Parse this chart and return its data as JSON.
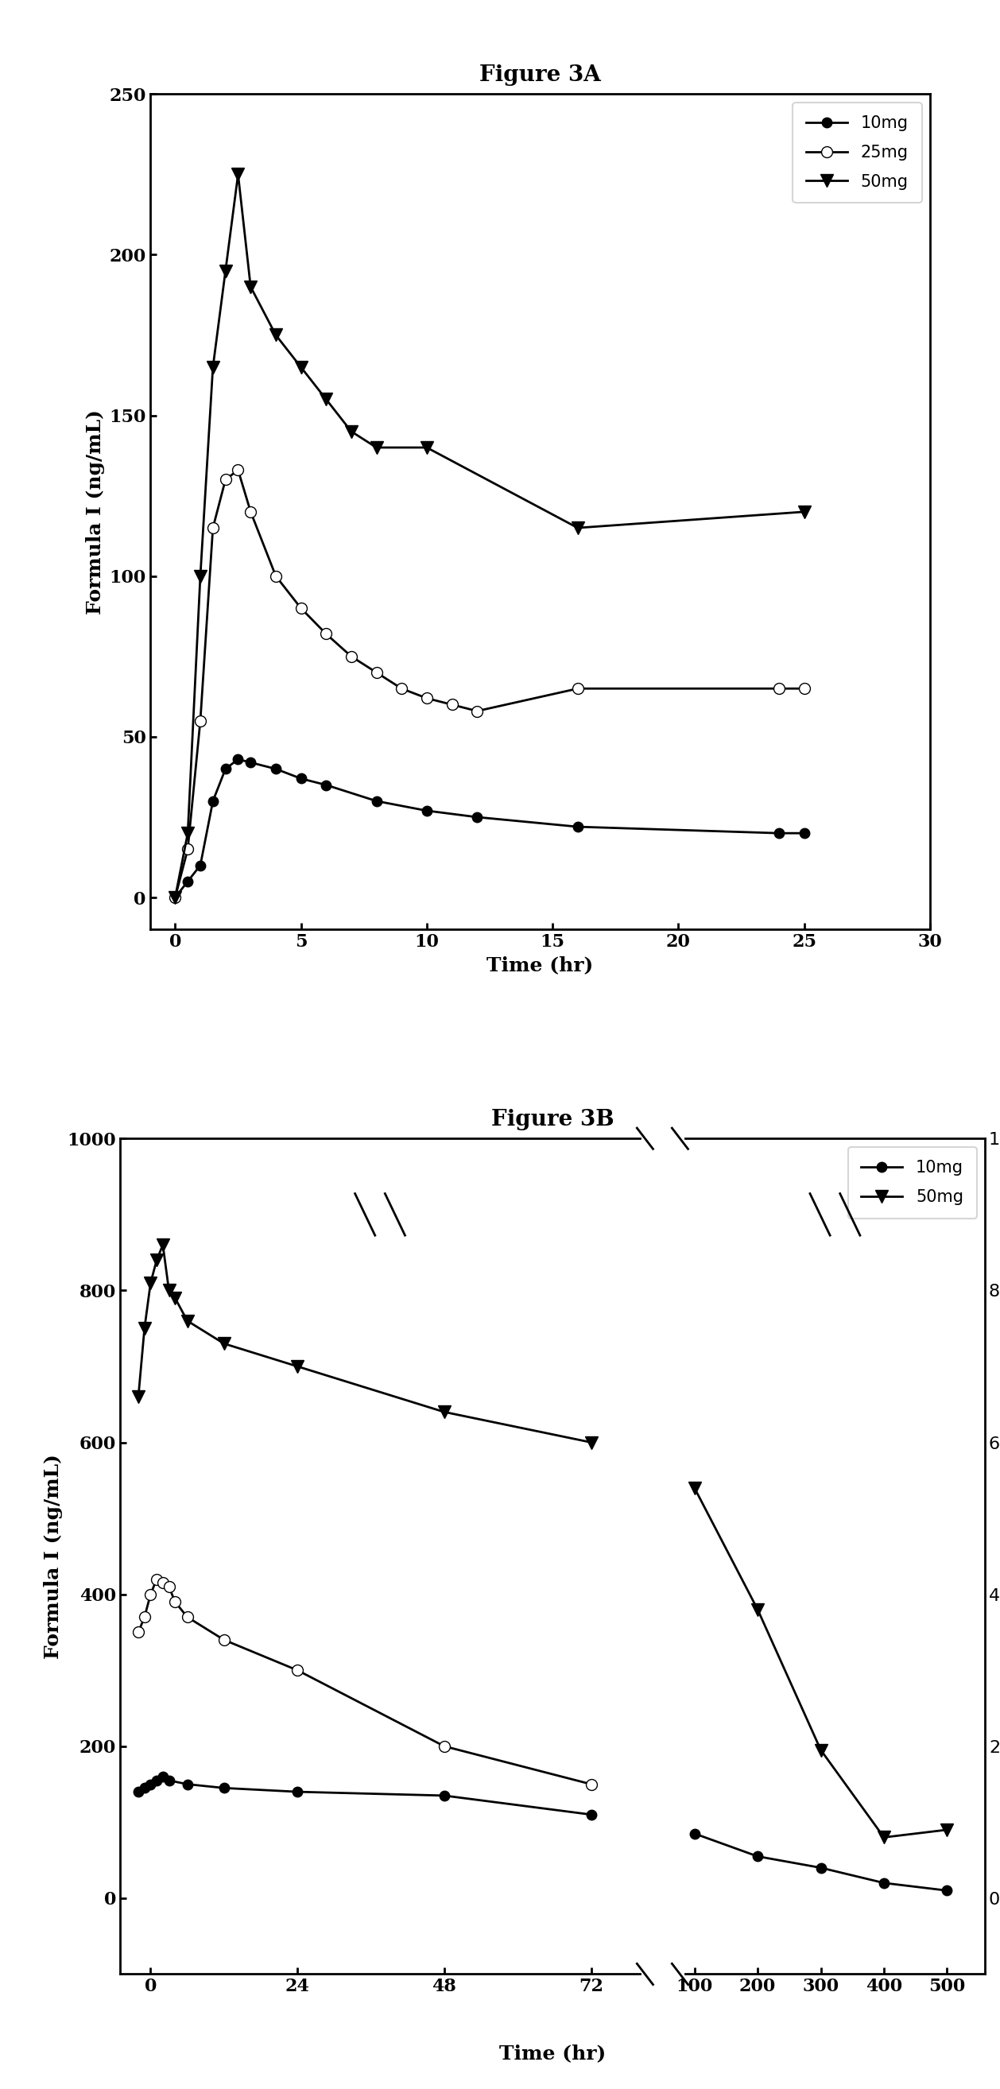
{
  "fig3a_title": "Figure 3A",
  "fig3b_title": "Figure 3B",
  "ylabel": "Formula I (ng/mL)",
  "xlabel": "Time (hr)",
  "fig3a_10mg_x": [
    0,
    0.5,
    1,
    1.5,
    2,
    2.5,
    3,
    4,
    5,
    6,
    8,
    10,
    12,
    16,
    24,
    25
  ],
  "fig3a_10mg_y": [
    0,
    5,
    10,
    30,
    40,
    43,
    42,
    40,
    37,
    35,
    30,
    27,
    25,
    22,
    20,
    20
  ],
  "fig3a_25mg_x": [
    0,
    0.5,
    1,
    1.5,
    2,
    2.5,
    3,
    4,
    5,
    6,
    7,
    8,
    9,
    10,
    11,
    12,
    16,
    24,
    25
  ],
  "fig3a_25mg_y": [
    0,
    15,
    55,
    115,
    130,
    133,
    120,
    100,
    90,
    82,
    75,
    70,
    65,
    62,
    60,
    58,
    65,
    65,
    65
  ],
  "fig3a_50mg_x": [
    0,
    0.5,
    1,
    1.5,
    2,
    2.5,
    3,
    4,
    5,
    6,
    7,
    8,
    10,
    16,
    25
  ],
  "fig3a_50mg_y": [
    0,
    20,
    100,
    165,
    195,
    225,
    190,
    175,
    165,
    155,
    145,
    140,
    140,
    115,
    120
  ],
  "fig3b_10mg_x1": [
    -2,
    -1,
    0,
    1,
    2,
    3,
    6,
    12,
    24,
    48,
    72
  ],
  "fig3b_10mg_y1": [
    140,
    145,
    150,
    155,
    160,
    155,
    150,
    145,
    140,
    135,
    110
  ],
  "fig3b_10mg_x2": [
    100,
    200,
    300,
    400,
    500
  ],
  "fig3b_10mg_y2": [
    85,
    55,
    40,
    20,
    10
  ],
  "fig3b_25mg_x1": [
    -2,
    -1,
    0,
    1,
    2,
    3,
    4,
    6,
    12,
    24,
    48,
    72
  ],
  "fig3b_25mg_y1": [
    350,
    370,
    400,
    420,
    415,
    410,
    390,
    370,
    340,
    300,
    200,
    150
  ],
  "fig3b_25mg_x2": [],
  "fig3b_25mg_y2": [],
  "fig3b_50mg_x1": [
    -2,
    -1,
    0,
    1,
    2,
    3,
    4,
    6,
    12,
    24,
    48,
    72
  ],
  "fig3b_50mg_y1": [
    660,
    750,
    810,
    840,
    860,
    800,
    790,
    760,
    730,
    700,
    640,
    600
  ],
  "fig3b_50mg_x2": [
    100,
    200,
    300,
    400,
    500
  ],
  "fig3b_50mg_y2": [
    540,
    380,
    195,
    80,
    90
  ],
  "color_10mg": "#000000",
  "color_25mg": "#000000",
  "color_50mg": "#000000",
  "fig3a_xlim": [
    -1,
    30
  ],
  "fig3a_ylim": [
    -10,
    250
  ],
  "fig3a_xticks": [
    0,
    5,
    10,
    15,
    20,
    25,
    30
  ],
  "fig3a_yticks": [
    0,
    50,
    100,
    150,
    200,
    250
  ],
  "fig3b_ylim": [
    -100,
    1000
  ],
  "fig3b_yticks": [
    0,
    200,
    400,
    600,
    800,
    1000
  ]
}
